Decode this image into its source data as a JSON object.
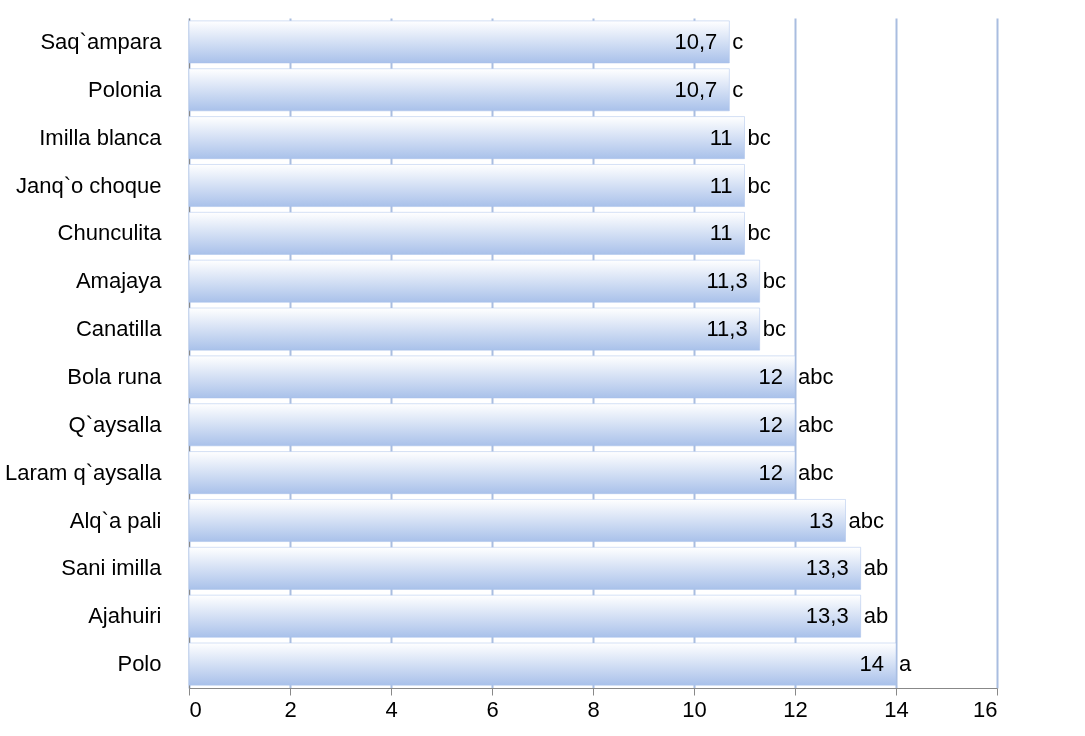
{
  "chart_data": {
    "type": "bar",
    "orientation": "horizontal",
    "categories": [
      "Saq`ampara",
      "Polonia",
      "Imilla blanca",
      "Janq`o choque",
      "Chunculita",
      "Amajaya",
      "Canatilla",
      "Bola runa",
      "Q`aysalla",
      "Laram q`aysalla",
      "Alq`a pali",
      "Sani imilla",
      "Ajahuiri",
      "Polo"
    ],
    "values": [
      10.7,
      10.7,
      11,
      11,
      11,
      11.3,
      11.3,
      12,
      12,
      12,
      13,
      13.3,
      13.3,
      14
    ],
    "value_labels": [
      "10,7",
      "10,7",
      "11",
      "11",
      "11",
      "11,3",
      "11,3",
      "12",
      "12",
      "12",
      "13",
      "13,3",
      "13,3",
      "14"
    ],
    "color": "#a9c1ea",
    "xlim": [
      0,
      16
    ],
    "xticks": [
      0,
      2,
      4,
      6,
      8,
      10,
      12,
      14,
      16
    ],
    "grid": "x",
    "annotations": [
      {
        "text": "c",
        "x": 10.7,
        "y": "Saq`ampara"
      },
      {
        "text": "c",
        "x": 10.7,
        "y": "Polonia"
      },
      {
        "text": "bc",
        "x": 11,
        "y": "Imilla blanca"
      },
      {
        "text": "bc",
        "x": 11,
        "y": "Janq`o choque"
      },
      {
        "text": "bc",
        "x": 11,
        "y": "Chunculita"
      },
      {
        "text": "bc",
        "x": 11.3,
        "y": "Amajaya"
      },
      {
        "text": "bc",
        "x": 11.3,
        "y": "Canatilla"
      },
      {
        "text": "abc",
        "x": 12,
        "y": "Bola runa"
      },
      {
        "text": "abc",
        "x": 12,
        "y": "Q`aysalla"
      },
      {
        "text": "abc",
        "x": 12,
        "y": "Laram q`aysalla"
      },
      {
        "text": "abc",
        "x": 13,
        "y": "Alq`a pali"
      },
      {
        "text": "ab",
        "x": 13.3,
        "y": "Sani imilla"
      },
      {
        "text": "ab",
        "x": 13.3,
        "y": "Ajahuiri"
      },
      {
        "text": "a",
        "x": 14,
        "y": "Polo"
      }
    ]
  }
}
